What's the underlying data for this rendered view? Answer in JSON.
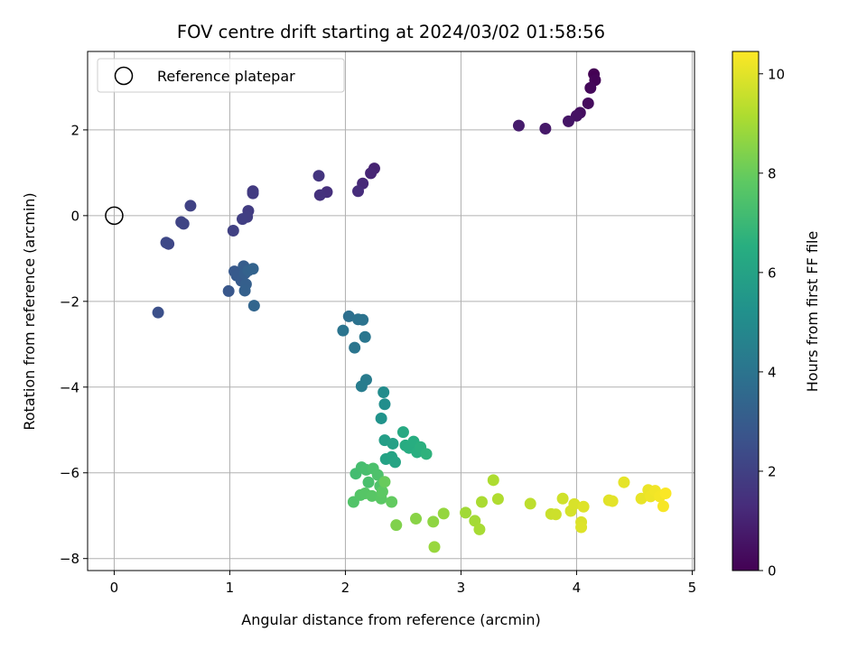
{
  "chart_data": {
    "type": "scatter",
    "title": "FOV centre drift starting at 2024/03/02 01:58:56",
    "xlabel": "Angular distance from reference (arcmin)",
    "ylabel": "Rotation from reference (arcmin)",
    "colorbar_label": "Hours from first FF file",
    "xlim": [
      -0.23,
      5.02
    ],
    "ylim": [
      -8.28,
      3.83
    ],
    "clim": [
      0,
      10.45
    ],
    "colormap": "viridis",
    "grid": true,
    "legend_position": "top-left",
    "x_ticks": [
      0,
      1,
      2,
      3,
      4,
      5
    ],
    "x_tick_labels": [
      "0",
      "1",
      "2",
      "3",
      "4",
      "5"
    ],
    "y_ticks": [
      2,
      0,
      -2,
      -4,
      -6,
      -8
    ],
    "y_tick_labels": [
      "2",
      "0",
      "−2",
      "−4",
      "−6",
      "−8"
    ],
    "colorbar_ticks": [
      0,
      2,
      4,
      6,
      8,
      10
    ],
    "colorbar_tick_labels": [
      "0",
      "2",
      "4",
      "6",
      "8",
      "10"
    ],
    "reference": {
      "label": "Reference platepar",
      "x": 0,
      "y": 0
    },
    "points": [
      {
        "x": 4.15,
        "y": 3.3,
        "t": 0.0
      },
      {
        "x": 4.16,
        "y": 3.16,
        "t": 0.1
      },
      {
        "x": 4.12,
        "y": 2.98,
        "t": 0.2
      },
      {
        "x": 4.1,
        "y": 2.62,
        "t": 0.3
      },
      {
        "x": 4.03,
        "y": 2.4,
        "t": 0.4
      },
      {
        "x": 4.0,
        "y": 2.33,
        "t": 0.5
      },
      {
        "x": 3.93,
        "y": 2.2,
        "t": 0.6
      },
      {
        "x": 3.73,
        "y": 2.03,
        "t": 0.7
      },
      {
        "x": 3.5,
        "y": 2.1,
        "t": 0.8
      },
      {
        "x": 2.25,
        "y": 1.1,
        "t": 1.0
      },
      {
        "x": 2.22,
        "y": 0.99,
        "t": 1.1
      },
      {
        "x": 2.15,
        "y": 0.75,
        "t": 1.2
      },
      {
        "x": 2.11,
        "y": 0.57,
        "t": 1.3
      },
      {
        "x": 1.84,
        "y": 0.55,
        "t": 1.4
      },
      {
        "x": 1.78,
        "y": 0.48,
        "t": 1.5
      },
      {
        "x": 1.77,
        "y": 0.93,
        "t": 1.6
      },
      {
        "x": 1.2,
        "y": 0.57,
        "t": 1.75
      },
      {
        "x": 1.2,
        "y": 0.52,
        "t": 1.8
      },
      {
        "x": 1.16,
        "y": 0.11,
        "t": 1.85
      },
      {
        "x": 1.15,
        "y": -0.03,
        "t": 1.9
      },
      {
        "x": 1.11,
        "y": -0.08,
        "t": 1.95
      },
      {
        "x": 1.03,
        "y": -0.35,
        "t": 2.0
      },
      {
        "x": 0.66,
        "y": 0.23,
        "t": 2.05
      },
      {
        "x": 0.58,
        "y": -0.15,
        "t": 2.1
      },
      {
        "x": 0.6,
        "y": -0.19,
        "t": 2.15
      },
      {
        "x": 0.47,
        "y": -0.66,
        "t": 2.2
      },
      {
        "x": 0.45,
        "y": -0.63,
        "t": 2.25
      },
      {
        "x": 0.38,
        "y": -2.26,
        "t": 2.55
      },
      {
        "x": 0.99,
        "y": -1.76,
        "t": 2.8
      },
      {
        "x": 1.04,
        "y": -1.3,
        "t": 2.9
      },
      {
        "x": 1.06,
        "y": -1.4,
        "t": 2.95
      },
      {
        "x": 1.1,
        "y": -1.52,
        "t": 3.0
      },
      {
        "x": 1.12,
        "y": -1.18,
        "t": 3.05
      },
      {
        "x": 1.13,
        "y": -1.35,
        "t": 3.1
      },
      {
        "x": 1.14,
        "y": -1.6,
        "t": 3.15
      },
      {
        "x": 1.13,
        "y": -1.75,
        "t": 3.2
      },
      {
        "x": 1.16,
        "y": -1.28,
        "t": 3.25
      },
      {
        "x": 1.2,
        "y": -1.24,
        "t": 3.3
      },
      {
        "x": 1.21,
        "y": -2.1,
        "t": 3.4
      },
      {
        "x": 2.03,
        "y": -2.35,
        "t": 3.8
      },
      {
        "x": 2.11,
        "y": -2.42,
        "t": 3.9
      },
      {
        "x": 2.15,
        "y": -2.43,
        "t": 3.95
      },
      {
        "x": 1.98,
        "y": -2.68,
        "t": 4.0
      },
      {
        "x": 2.08,
        "y": -3.08,
        "t": 4.05
      },
      {
        "x": 2.17,
        "y": -2.83,
        "t": 4.1
      },
      {
        "x": 2.18,
        "y": -3.83,
        "t": 4.3
      },
      {
        "x": 2.14,
        "y": -3.98,
        "t": 4.35
      },
      {
        "x": 2.33,
        "y": -4.12,
        "t": 5.0
      },
      {
        "x": 2.34,
        "y": -4.4,
        "t": 5.1
      },
      {
        "x": 2.31,
        "y": -4.73,
        "t": 5.3
      },
      {
        "x": 2.34,
        "y": -5.24,
        "t": 5.8
      },
      {
        "x": 2.41,
        "y": -5.32,
        "t": 5.9
      },
      {
        "x": 2.35,
        "y": -5.68,
        "t": 6.0
      },
      {
        "x": 2.4,
        "y": -5.63,
        "t": 6.05
      },
      {
        "x": 2.43,
        "y": -5.75,
        "t": 6.1
      },
      {
        "x": 2.5,
        "y": -5.05,
        "t": 6.3
      },
      {
        "x": 2.52,
        "y": -5.36,
        "t": 6.4
      },
      {
        "x": 2.55,
        "y": -5.42,
        "t": 6.45
      },
      {
        "x": 2.59,
        "y": -5.27,
        "t": 6.5
      },
      {
        "x": 2.62,
        "y": -5.52,
        "t": 6.55
      },
      {
        "x": 2.65,
        "y": -5.4,
        "t": 6.6
      },
      {
        "x": 2.7,
        "y": -5.56,
        "t": 6.7
      },
      {
        "x": 2.09,
        "y": -6.02,
        "t": 7.2
      },
      {
        "x": 2.14,
        "y": -5.87,
        "t": 7.25
      },
      {
        "x": 2.18,
        "y": -5.93,
        "t": 7.3
      },
      {
        "x": 2.2,
        "y": -6.22,
        "t": 7.35
      },
      {
        "x": 2.24,
        "y": -5.9,
        "t": 7.4
      },
      {
        "x": 2.28,
        "y": -6.05,
        "t": 7.45
      },
      {
        "x": 2.3,
        "y": -6.31,
        "t": 7.5
      },
      {
        "x": 2.07,
        "y": -6.68,
        "t": 7.55
      },
      {
        "x": 2.13,
        "y": -6.52,
        "t": 7.6
      },
      {
        "x": 2.17,
        "y": -6.48,
        "t": 7.65
      },
      {
        "x": 2.23,
        "y": -6.54,
        "t": 7.7
      },
      {
        "x": 2.31,
        "y": -6.6,
        "t": 7.75
      },
      {
        "x": 2.32,
        "y": -6.44,
        "t": 7.8
      },
      {
        "x": 2.4,
        "y": -6.68,
        "t": 7.9
      },
      {
        "x": 2.34,
        "y": -6.21,
        "t": 8.0
      },
      {
        "x": 2.44,
        "y": -7.22,
        "t": 8.4
      },
      {
        "x": 2.61,
        "y": -7.07,
        "t": 8.55
      },
      {
        "x": 2.76,
        "y": -7.14,
        "t": 8.65
      },
      {
        "x": 2.85,
        "y": -6.95,
        "t": 8.75
      },
      {
        "x": 2.77,
        "y": -7.73,
        "t": 8.8
      },
      {
        "x": 3.04,
        "y": -6.93,
        "t": 8.95
      },
      {
        "x": 3.12,
        "y": -7.12,
        "t": 9.0
      },
      {
        "x": 3.16,
        "y": -7.32,
        "t": 9.05
      },
      {
        "x": 3.18,
        "y": -6.68,
        "t": 9.1
      },
      {
        "x": 3.28,
        "y": -6.17,
        "t": 9.15
      },
      {
        "x": 3.32,
        "y": -6.61,
        "t": 9.2
      },
      {
        "x": 3.6,
        "y": -6.72,
        "t": 9.4
      },
      {
        "x": 3.78,
        "y": -6.96,
        "t": 9.6
      },
      {
        "x": 3.82,
        "y": -6.97,
        "t": 9.65
      },
      {
        "x": 3.88,
        "y": -6.6,
        "t": 9.7
      },
      {
        "x": 3.95,
        "y": -6.89,
        "t": 9.8
      },
      {
        "x": 3.98,
        "y": -6.73,
        "t": 9.85
      },
      {
        "x": 4.04,
        "y": -7.15,
        "t": 9.9
      },
      {
        "x": 4.04,
        "y": -7.27,
        "t": 9.92
      },
      {
        "x": 4.06,
        "y": -6.79,
        "t": 9.95
      },
      {
        "x": 4.28,
        "y": -6.64,
        "t": 10.0
      },
      {
        "x": 4.31,
        "y": -6.66,
        "t": 10.02
      },
      {
        "x": 4.41,
        "y": -6.22,
        "t": 10.05
      },
      {
        "x": 4.56,
        "y": -6.6,
        "t": 10.1
      },
      {
        "x": 4.62,
        "y": -6.4,
        "t": 10.15
      },
      {
        "x": 4.64,
        "y": -6.55,
        "t": 10.2
      },
      {
        "x": 4.68,
        "y": -6.42,
        "t": 10.25
      },
      {
        "x": 4.72,
        "y": -6.55,
        "t": 10.3
      },
      {
        "x": 4.75,
        "y": -6.78,
        "t": 10.35
      },
      {
        "x": 4.77,
        "y": -6.48,
        "t": 10.4
      }
    ]
  }
}
